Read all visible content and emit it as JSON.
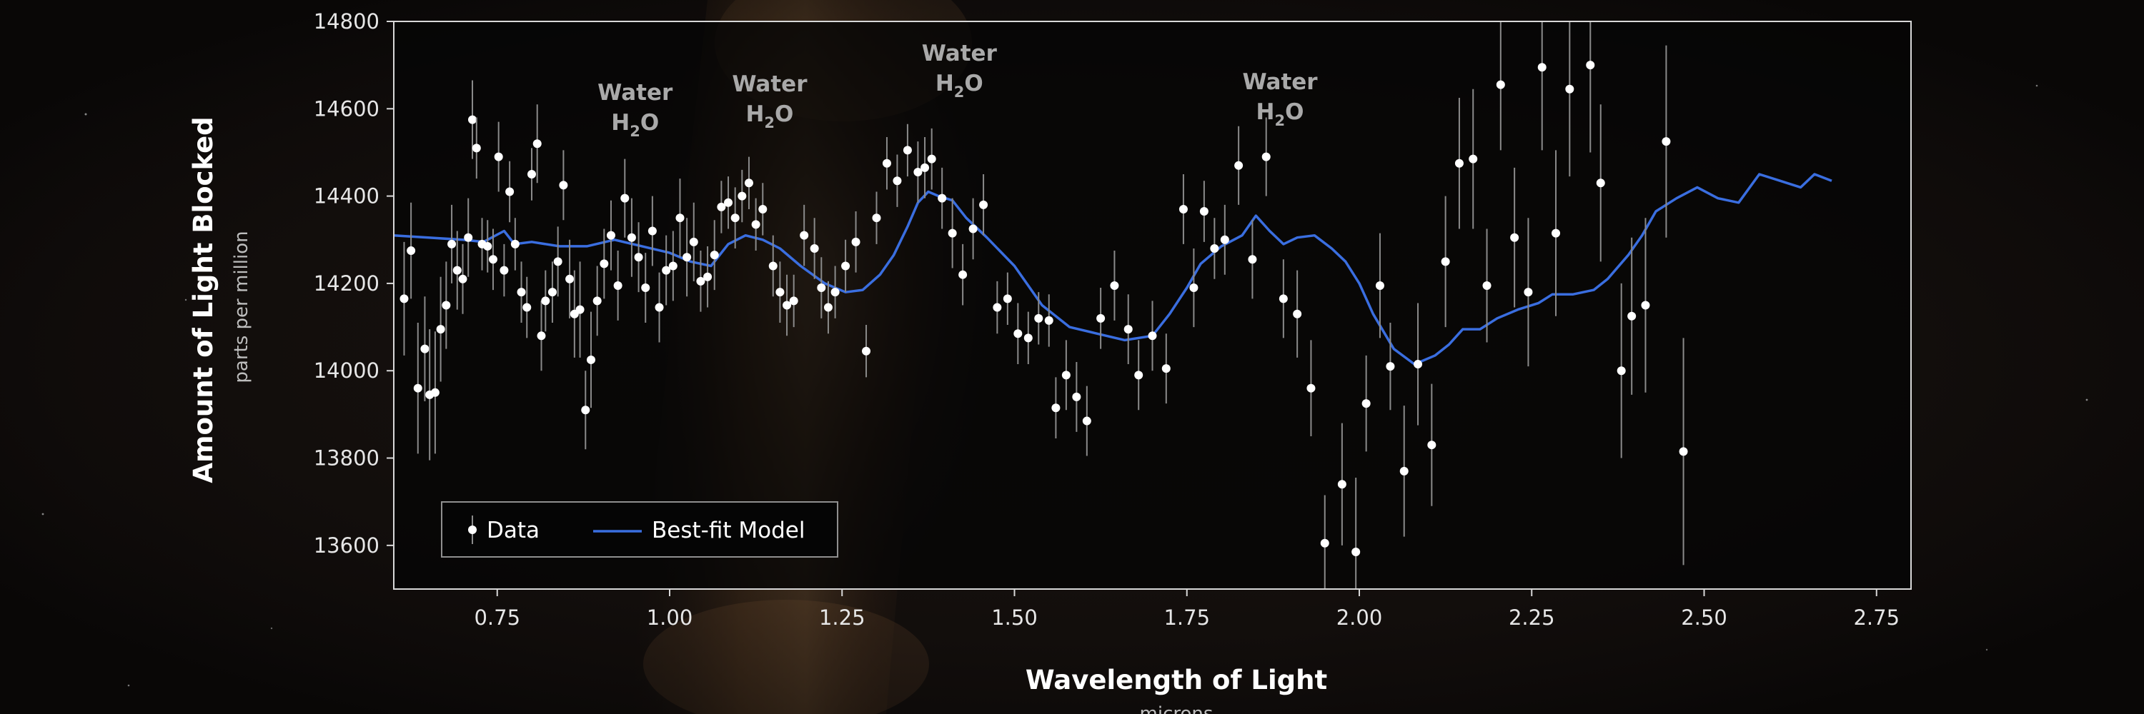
{
  "chart_data": {
    "type": "scatter",
    "title": "",
    "xlabel": "Wavelength of Light",
    "xlabel_sub": "microns",
    "ylabel": "Amount of Light Blocked",
    "ylabel_sub": "parts per million",
    "xlim": [
      0.6,
      2.8
    ],
    "ylim": [
      13500,
      14800
    ],
    "xticks": [
      0.75,
      1.0,
      1.25,
      1.5,
      1.75,
      2.0,
      2.25,
      2.5,
      2.75
    ],
    "xtick_labels": [
      "0.75",
      "1.00",
      "1.25",
      "1.50",
      "1.75",
      "2.00",
      "2.25",
      "2.50",
      "2.75"
    ],
    "yticks": [
      13600,
      13800,
      14000,
      14200,
      14400,
      14600,
      14800
    ],
    "ytick_labels": [
      "13600",
      "13800",
      "14000",
      "14200",
      "14400",
      "14600",
      "14800"
    ],
    "grid": false,
    "legend_position": "bottom-left",
    "legend": [
      {
        "label": "Data",
        "marker": "point-with-errorbar"
      },
      {
        "label": "Best-fit Model",
        "marker": "line"
      }
    ],
    "annotations": [
      {
        "x": 0.95,
        "y": 14620,
        "line1": "Water",
        "line2": "H",
        "sub": "2",
        "tail": "O"
      },
      {
        "x": 1.145,
        "y": 14640,
        "line1": "Water",
        "line2": "H",
        "sub": "2",
        "tail": "O"
      },
      {
        "x": 1.42,
        "y": 14710,
        "line1": "Water",
        "line2": "H",
        "sub": "2",
        "tail": "O"
      },
      {
        "x": 1.885,
        "y": 14645,
        "line1": "Water",
        "line2": "H",
        "sub": "2",
        "tail": "O"
      }
    ],
    "colors": {
      "data": "#ffffff",
      "errorbar": "#8a8a8a",
      "model": "#3a6ee0",
      "axes": "#d8d8d8"
    },
    "series": [
      {
        "name": "Data",
        "kind": "scatter-errorbar",
        "points": [
          [
            0.615,
            14165,
            130
          ],
          [
            0.625,
            14275,
            110
          ],
          [
            0.635,
            13960,
            150
          ],
          [
            0.645,
            14050,
            120
          ],
          [
            0.652,
            13945,
            150
          ],
          [
            0.66,
            13950,
            140
          ],
          [
            0.668,
            14095,
            120
          ],
          [
            0.676,
            14150,
            100
          ],
          [
            0.684,
            14290,
            90
          ],
          [
            0.692,
            14230,
            90
          ],
          [
            0.7,
            14210,
            80
          ],
          [
            0.708,
            14305,
            90
          ],
          [
            0.714,
            14575,
            90
          ],
          [
            0.72,
            14510,
            70
          ],
          [
            0.728,
            14290,
            60
          ],
          [
            0.736,
            14285,
            60
          ],
          [
            0.744,
            14255,
            70
          ],
          [
            0.752,
            14490,
            80
          ],
          [
            0.76,
            14230,
            60
          ],
          [
            0.768,
            14410,
            70
          ],
          [
            0.776,
            14290,
            60
          ],
          [
            0.785,
            14180,
            70
          ],
          [
            0.793,
            14145,
            70
          ],
          [
            0.8,
            14450,
            60
          ],
          [
            0.808,
            14520,
            90
          ],
          [
            0.814,
            14080,
            80
          ],
          [
            0.82,
            14160,
            70
          ],
          [
            0.83,
            14180,
            70
          ],
          [
            0.838,
            14250,
            80
          ],
          [
            0.846,
            14425,
            80
          ],
          [
            0.855,
            14210,
            90
          ],
          [
            0.862,
            14130,
            100
          ],
          [
            0.87,
            14140,
            110
          ],
          [
            0.878,
            13910,
            90
          ],
          [
            0.886,
            14025,
            110
          ],
          [
            0.895,
            14160,
            80
          ],
          [
            0.905,
            14245,
            80
          ],
          [
            0.915,
            14310,
            80
          ],
          [
            0.925,
            14195,
            80
          ],
          [
            0.935,
            14395,
            90
          ],
          [
            0.945,
            14305,
            90
          ],
          [
            0.955,
            14260,
            80
          ],
          [
            0.965,
            14190,
            80
          ],
          [
            0.975,
            14320,
            80
          ],
          [
            0.985,
            14145,
            80
          ],
          [
            0.995,
            14230,
            80
          ],
          [
            1.005,
            14240,
            80
          ],
          [
            1.015,
            14350,
            90
          ],
          [
            1.025,
            14260,
            90
          ],
          [
            1.035,
            14295,
            90
          ],
          [
            1.045,
            14205,
            70
          ],
          [
            1.055,
            14215,
            70
          ],
          [
            1.065,
            14265,
            80
          ],
          [
            1.075,
            14375,
            60
          ],
          [
            1.085,
            14385,
            60
          ],
          [
            1.095,
            14350,
            70
          ],
          [
            1.105,
            14400,
            60
          ],
          [
            1.115,
            14430,
            60
          ],
          [
            1.125,
            14335,
            60
          ],
          [
            1.135,
            14370,
            60
          ],
          [
            1.15,
            14240,
            70
          ],
          [
            1.16,
            14180,
            70
          ],
          [
            1.17,
            14150,
            70
          ],
          [
            1.18,
            14160,
            60
          ],
          [
            1.195,
            14310,
            70
          ],
          [
            1.21,
            14280,
            70
          ],
          [
            1.22,
            14190,
            70
          ],
          [
            1.23,
            14145,
            60
          ],
          [
            1.24,
            14180,
            60
          ],
          [
            1.255,
            14240,
            60
          ],
          [
            1.27,
            14295,
            70
          ],
          [
            1.285,
            14045,
            60
          ],
          [
            1.3,
            14350,
            60
          ],
          [
            1.315,
            14475,
            60
          ],
          [
            1.33,
            14435,
            60
          ],
          [
            1.345,
            14505,
            60
          ],
          [
            1.36,
            14455,
            70
          ],
          [
            1.37,
            14465,
            70
          ],
          [
            1.38,
            14485,
            70
          ],
          [
            1.395,
            14395,
            70
          ],
          [
            1.41,
            14315,
            80
          ],
          [
            1.425,
            14220,
            70
          ],
          [
            1.44,
            14325,
            70
          ],
          [
            1.455,
            14380,
            70
          ],
          [
            1.475,
            14145,
            60
          ],
          [
            1.49,
            14165,
            60
          ],
          [
            1.505,
            14085,
            70
          ],
          [
            1.52,
            14075,
            60
          ],
          [
            1.535,
            14120,
            60
          ],
          [
            1.55,
            14115,
            60
          ],
          [
            1.56,
            13915,
            70
          ],
          [
            1.575,
            13990,
            80
          ],
          [
            1.59,
            13940,
            80
          ],
          [
            1.605,
            13885,
            80
          ],
          [
            1.625,
            14120,
            70
          ],
          [
            1.645,
            14195,
            80
          ],
          [
            1.665,
            14095,
            80
          ],
          [
            1.68,
            13990,
            80
          ],
          [
            1.7,
            14080,
            80
          ],
          [
            1.72,
            14005,
            80
          ],
          [
            1.745,
            14370,
            80
          ],
          [
            1.76,
            14190,
            90
          ],
          [
            1.775,
            14365,
            70
          ],
          [
            1.79,
            14280,
            70
          ],
          [
            1.805,
            14300,
            80
          ],
          [
            1.825,
            14470,
            90
          ],
          [
            1.845,
            14255,
            90
          ],
          [
            1.865,
            14490,
            90
          ],
          [
            1.89,
            14165,
            90
          ],
          [
            1.91,
            14130,
            100
          ],
          [
            1.93,
            13960,
            110
          ],
          [
            1.95,
            13605,
            110
          ],
          [
            1.975,
            13740,
            140
          ],
          [
            1.995,
            13585,
            170
          ],
          [
            2.01,
            13925,
            110
          ],
          [
            2.03,
            14195,
            120
          ],
          [
            2.045,
            14010,
            100
          ],
          [
            2.065,
            13770,
            150
          ],
          [
            2.085,
            14015,
            140
          ],
          [
            2.105,
            13830,
            140
          ],
          [
            2.125,
            14250,
            150
          ],
          [
            2.145,
            14475,
            150
          ],
          [
            2.165,
            14485,
            160
          ],
          [
            2.185,
            14195,
            130
          ],
          [
            2.205,
            14655,
            150
          ],
          [
            2.225,
            14305,
            160
          ],
          [
            2.245,
            14180,
            170
          ],
          [
            2.265,
            14695,
            190
          ],
          [
            2.285,
            14315,
            190
          ],
          [
            2.305,
            14645,
            200
          ],
          [
            2.335,
            14700,
            200
          ],
          [
            2.35,
            14430,
            180
          ],
          [
            2.38,
            14000,
            200
          ],
          [
            2.395,
            14125,
            180
          ],
          [
            2.415,
            14150,
            200
          ],
          [
            2.445,
            14525,
            220
          ],
          [
            2.47,
            13815,
            260
          ]
        ]
      },
      {
        "name": "Best-fit Model",
        "kind": "line",
        "points": [
          [
            0.6,
            14310
          ],
          [
            0.65,
            14305
          ],
          [
            0.7,
            14300
          ],
          [
            0.73,
            14295
          ],
          [
            0.76,
            14320
          ],
          [
            0.775,
            14290
          ],
          [
            0.8,
            14295
          ],
          [
            0.84,
            14285
          ],
          [
            0.88,
            14285
          ],
          [
            0.92,
            14300
          ],
          [
            0.96,
            14285
          ],
          [
            1.0,
            14270
          ],
          [
            1.03,
            14250
          ],
          [
            1.06,
            14240
          ],
          [
            1.085,
            14290
          ],
          [
            1.11,
            14310
          ],
          [
            1.135,
            14300
          ],
          [
            1.16,
            14280
          ],
          [
            1.19,
            14240
          ],
          [
            1.225,
            14200
          ],
          [
            1.255,
            14180
          ],
          [
            1.28,
            14185
          ],
          [
            1.305,
            14220
          ],
          [
            1.325,
            14265
          ],
          [
            1.345,
            14330
          ],
          [
            1.36,
            14385
          ],
          [
            1.375,
            14410
          ],
          [
            1.39,
            14400
          ],
          [
            1.41,
            14390
          ],
          [
            1.43,
            14350
          ],
          [
            1.46,
            14305
          ],
          [
            1.5,
            14240
          ],
          [
            1.54,
            14150
          ],
          [
            1.58,
            14100
          ],
          [
            1.62,
            14085
          ],
          [
            1.66,
            14070
          ],
          [
            1.7,
            14080
          ],
          [
            1.725,
            14130
          ],
          [
            1.75,
            14190
          ],
          [
            1.77,
            14245
          ],
          [
            1.8,
            14285
          ],
          [
            1.83,
            14310
          ],
          [
            1.85,
            14355
          ],
          [
            1.87,
            14320
          ],
          [
            1.89,
            14290
          ],
          [
            1.91,
            14305
          ],
          [
            1.935,
            14310
          ],
          [
            1.96,
            14280
          ],
          [
            1.98,
            14250
          ],
          [
            2.0,
            14200
          ],
          [
            2.02,
            14130
          ],
          [
            2.05,
            14050
          ],
          [
            2.08,
            14015
          ],
          [
            2.11,
            14035
          ],
          [
            2.13,
            14060
          ],
          [
            2.15,
            14095
          ],
          [
            2.175,
            14095
          ],
          [
            2.2,
            14120
          ],
          [
            2.23,
            14140
          ],
          [
            2.26,
            14155
          ],
          [
            2.28,
            14175
          ],
          [
            2.31,
            14175
          ],
          [
            2.34,
            14185
          ],
          [
            2.36,
            14210
          ],
          [
            2.39,
            14265
          ],
          [
            2.41,
            14310
          ],
          [
            2.43,
            14365
          ],
          [
            2.46,
            14395
          ],
          [
            2.49,
            14420
          ],
          [
            2.52,
            14395
          ],
          [
            2.55,
            14385
          ],
          [
            2.58,
            14450
          ],
          [
            2.61,
            14435
          ],
          [
            2.64,
            14420
          ],
          [
            2.66,
            14450
          ],
          [
            2.685,
            14435
          ]
        ]
      }
    ]
  }
}
